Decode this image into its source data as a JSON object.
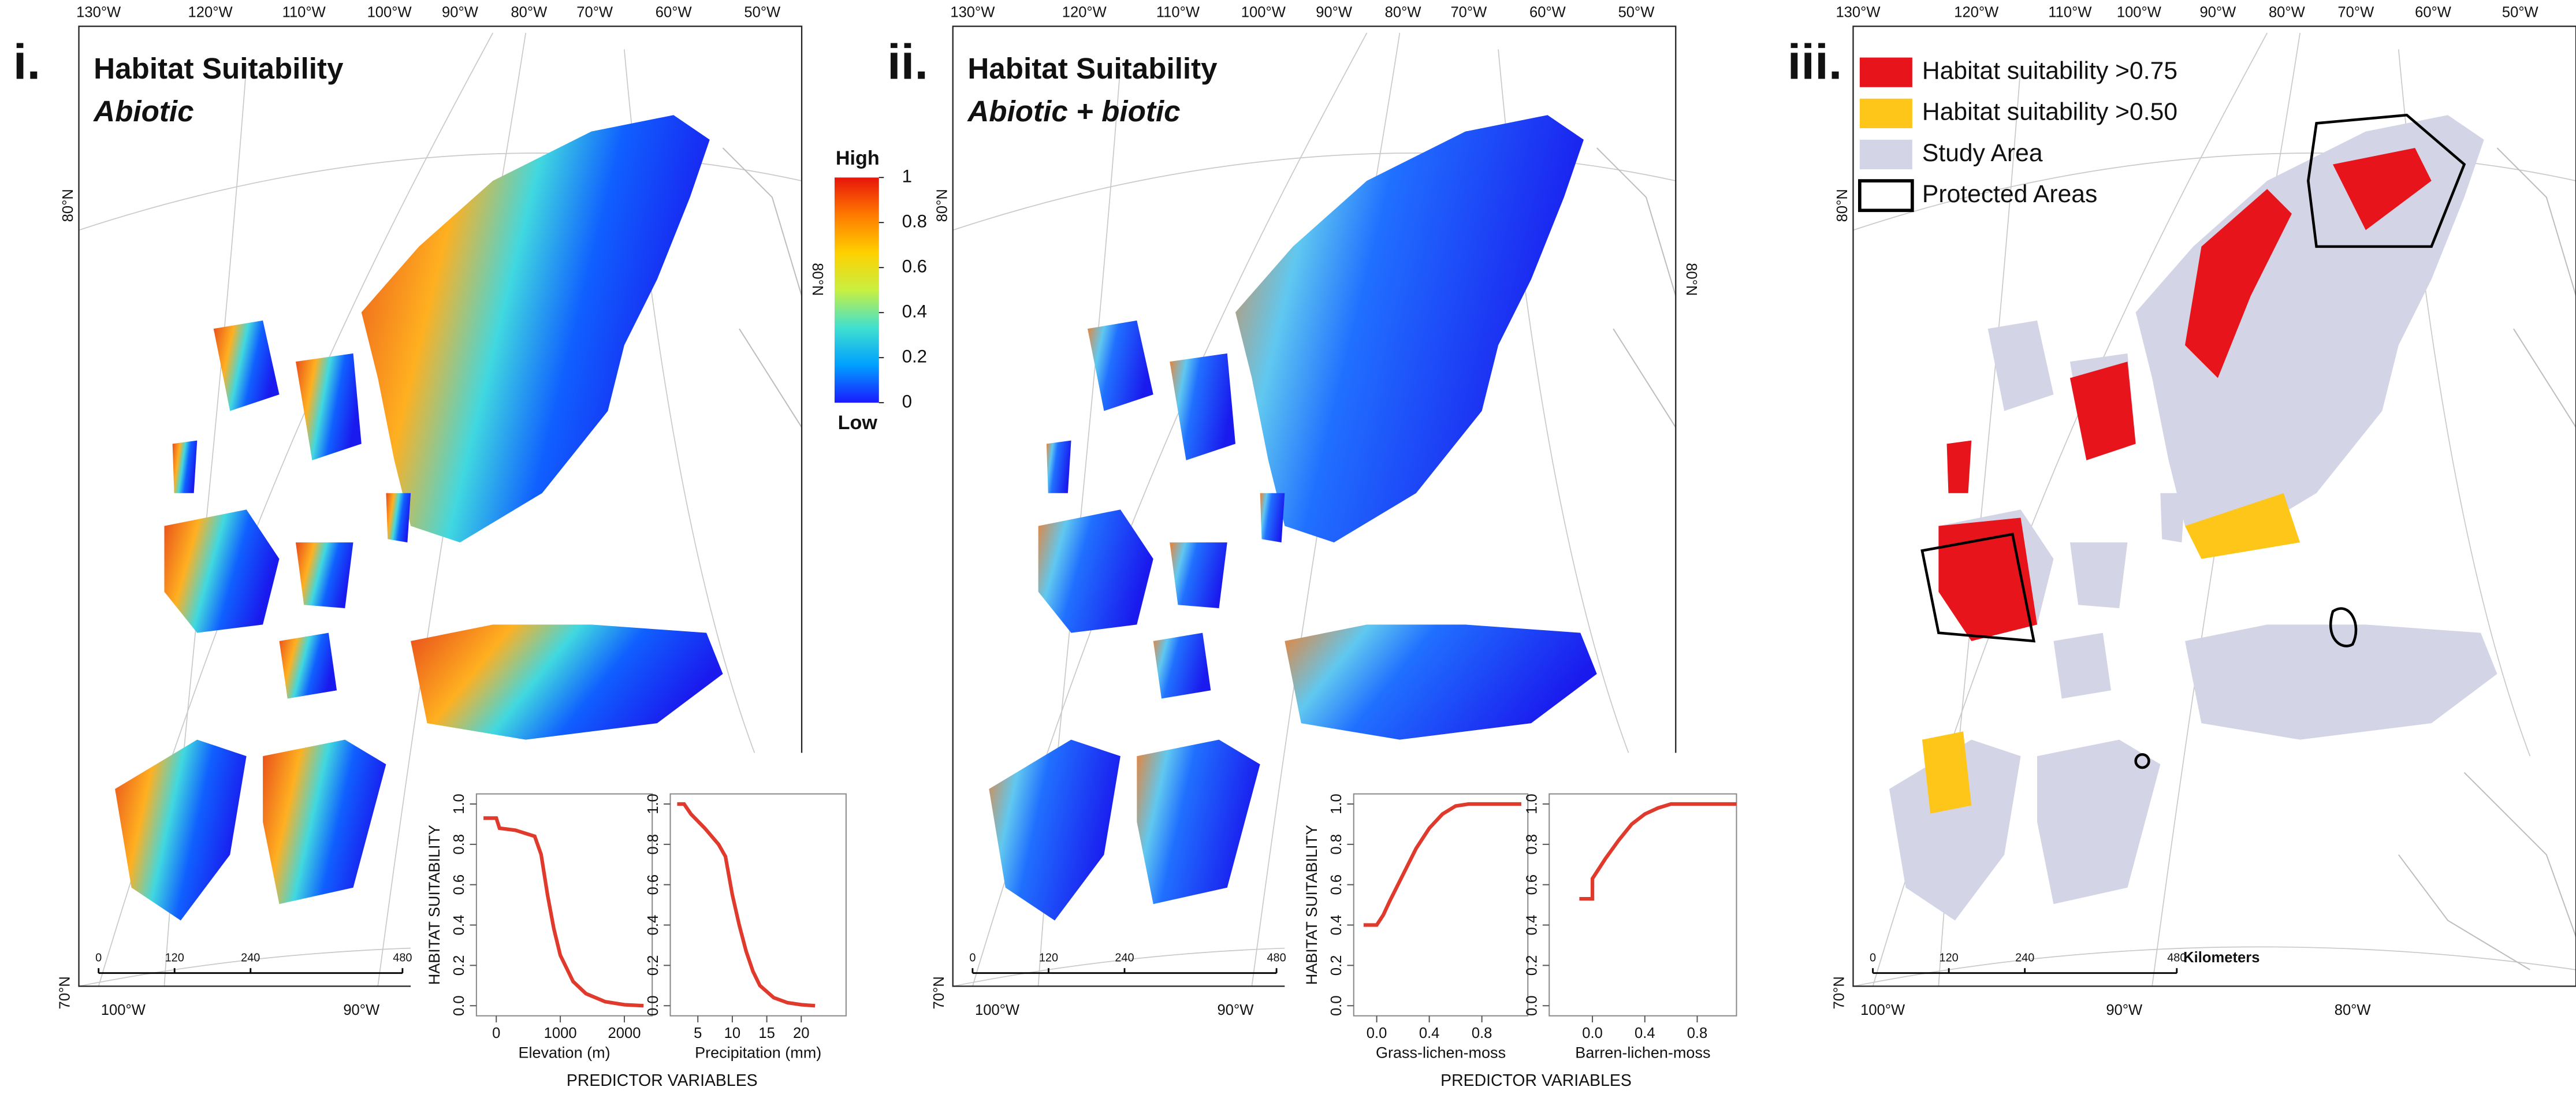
{
  "panels": [
    {
      "label": "i.",
      "title": "Habitat Suitability",
      "subtitle": "Abiotic",
      "footer": "PREDICTOR VARIABLES"
    },
    {
      "label": "ii.",
      "title": "Habitat Suitability",
      "subtitle": "Abiotic + biotic",
      "footer": "PREDICTOR VARIABLES"
    },
    {
      "label": "iii."
    }
  ],
  "graticule": {
    "top": [
      "130°W",
      "120°W",
      "110°W",
      "100°W",
      "90°W",
      "80°W",
      "70°W",
      "60°W",
      "50°W"
    ],
    "bottom": [
      "100°W",
      "90°W",
      "80°W"
    ],
    "lat": [
      "80°N",
      "70°N"
    ]
  },
  "scale_bar": {
    "ticks": [
      0,
      120,
      240,
      480
    ],
    "unit": "Kilometers"
  },
  "colorbar": {
    "high": "High",
    "low": "Low",
    "ticks": [
      0,
      0.2,
      0.4,
      0.6,
      0.8,
      1
    ],
    "colors": [
      "#1a1aff",
      "#00a0ff",
      "#40e0d0",
      "#c8f040",
      "#ffd000",
      "#ff7a00",
      "#e8140a"
    ]
  },
  "legend": [
    {
      "label": "Habitat suitability >0.75",
      "color": "#e8141b"
    },
    {
      "label": "Habitat suitability >0.50",
      "color": "#ffc61a"
    },
    {
      "label": "Study Area",
      "color": "#d3d4e6"
    },
    {
      "label": "Protected Areas",
      "color": "none"
    }
  ],
  "chart_data": [
    {
      "type": "line",
      "xlabel": "Elevation (m)",
      "ylabel": "HABITAT SUITABILITY",
      "x": [
        -200,
        0,
        50,
        300,
        600,
        700,
        800,
        900,
        1000,
        1200,
        1400,
        1700,
        2000,
        2300
      ],
      "series": [
        {
          "color": "#e03a2c",
          "values": [
            0.93,
            0.93,
            0.88,
            0.87,
            0.84,
            0.75,
            0.55,
            0.38,
            0.25,
            0.12,
            0.06,
            0.02,
            0.005,
            0
          ]
        }
      ],
      "xlim": [
        -310,
        2435
      ],
      "ylim": [
        -0.05,
        1.05
      ],
      "xticks": [
        0,
        1000,
        2000
      ],
      "yticks": [
        {
          "value": 0,
          "label": "0.0"
        },
        0.2,
        0.4,
        0.6,
        0.8,
        {
          "value": 1,
          "label": "1.0"
        }
      ]
    },
    {
      "type": "line",
      "xlabel": "Precipitation (mm)",
      "x": [
        2,
        3,
        4,
        6,
        8,
        9,
        10,
        11,
        12,
        13,
        14,
        16,
        18,
        20,
        22
      ],
      "series": [
        {
          "color": "#e03a2c",
          "values": [
            1,
            1,
            0.95,
            0.88,
            0.8,
            0.74,
            0.55,
            0.4,
            0.27,
            0.17,
            0.1,
            0.04,
            0.015,
            0.005,
            0
          ]
        }
      ],
      "xlim": [
        1,
        26.5
      ],
      "ylim": [
        -0.05,
        1.05
      ],
      "xticks": [
        5,
        10,
        15,
        20
      ],
      "yticks": [
        {
          "value": 0,
          "label": "0.0"
        },
        0.2,
        0.4,
        0.6,
        0.8,
        {
          "value": 1,
          "label": "1.0"
        }
      ]
    },
    {
      "type": "line",
      "xlabel": "Grass-lichen-moss",
      "ylabel": "HABITAT SUITABILITY",
      "x": [
        -0.1,
        0,
        0.05,
        0.1,
        0.2,
        0.3,
        0.4,
        0.5,
        0.6,
        0.7,
        1.1
      ],
      "series": [
        {
          "color": "#e03a2c",
          "values": [
            0.4,
            0.4,
            0.45,
            0.52,
            0.65,
            0.78,
            0.88,
            0.95,
            0.99,
            1,
            1
          ]
        }
      ],
      "xlim": [
        -0.175,
        1.15
      ],
      "ylim": [
        -0.05,
        1.05
      ],
      "xticks": [
        {
          "value": 0,
          "label": "0.0"
        },
        0.4,
        0.8
      ],
      "yticks": [
        {
          "value": 0,
          "label": "0.0"
        },
        0.2,
        0.4,
        0.6,
        0.8,
        {
          "value": 1,
          "label": "1.0"
        }
      ]
    },
    {
      "type": "line",
      "xlabel": "Barren-lichen-moss",
      "x": [
        -0.1,
        0,
        0,
        0.05,
        0.1,
        0.2,
        0.3,
        0.4,
        0.5,
        0.6,
        1.1
      ],
      "series": [
        {
          "color": "#e03a2c",
          "values": [
            0.53,
            0.53,
            0.63,
            0.68,
            0.73,
            0.82,
            0.9,
            0.95,
            0.98,
            1,
            1
          ]
        }
      ],
      "xlim": [
        -0.33,
        1.1
      ],
      "ylim": [
        -0.05,
        1.05
      ],
      "xticks": [
        {
          "value": 0,
          "label": "0.0"
        },
        0.4,
        0.8
      ],
      "yticks": [
        {
          "value": 0,
          "label": "0.0"
        },
        0.2,
        0.4,
        0.6,
        0.8,
        {
          "value": 1,
          "label": "1.0"
        }
      ]
    }
  ]
}
